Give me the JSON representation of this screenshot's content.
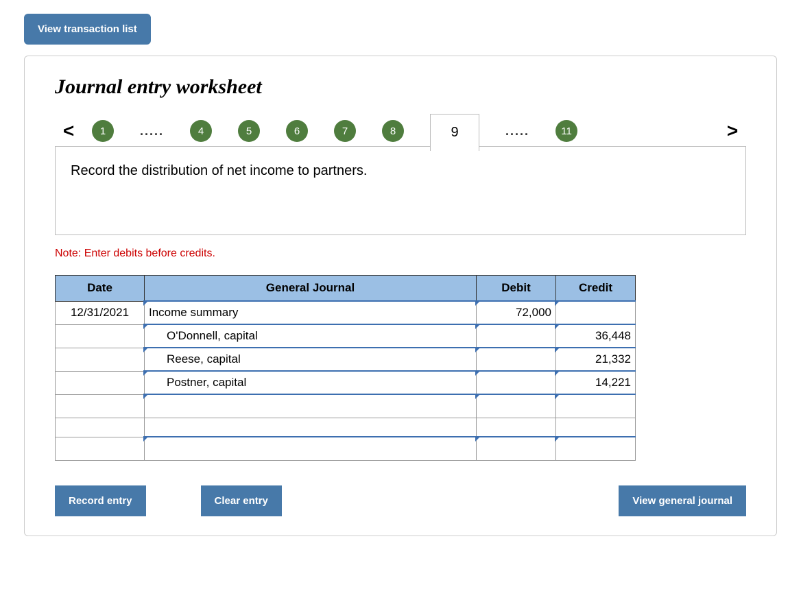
{
  "top_button": "View transaction list",
  "title": "Journal entry worksheet",
  "nav": {
    "prev": "<",
    "next": ">",
    "circles_before": [
      "1"
    ],
    "dots": ".....",
    "circles_mid": [
      "4",
      "5",
      "6",
      "7",
      "8"
    ],
    "active": "9",
    "circles_after": [
      "11"
    ]
  },
  "instruction": "Record the distribution of net income to partners.",
  "note": "Note: Enter debits before credits.",
  "table": {
    "headers": {
      "date": "Date",
      "gj": "General Journal",
      "debit": "Debit",
      "credit": "Credit"
    },
    "widths": {
      "date": 130,
      "gj": 484,
      "debit": 116,
      "credit": 116
    },
    "rows": [
      {
        "date": "12/31/2021",
        "gj": "Income summary",
        "indent": false,
        "debit": "72,000",
        "credit": ""
      },
      {
        "date": "",
        "gj": "O'Donnell, capital",
        "indent": true,
        "debit": "",
        "credit": "36,448"
      },
      {
        "date": "",
        "gj": "Reese, capital",
        "indent": true,
        "debit": "",
        "credit": "21,332"
      },
      {
        "date": "",
        "gj": "Postner, capital",
        "indent": true,
        "debit": "",
        "credit": "14,221"
      },
      {
        "date": "",
        "gj": "",
        "indent": false,
        "debit": "",
        "credit": ""
      },
      {
        "date": "",
        "gj": "",
        "indent": false,
        "debit": "",
        "credit": ""
      }
    ]
  },
  "buttons": {
    "record": "Record entry",
    "clear": "Clear entry",
    "view": "View general journal"
  },
  "colors": {
    "btn_bg": "#4779a9",
    "step_bg": "#4f7d3e",
    "th_bg": "#9bbfe4",
    "field_border": "#3d6fb0",
    "note_color": "#cc0000"
  }
}
